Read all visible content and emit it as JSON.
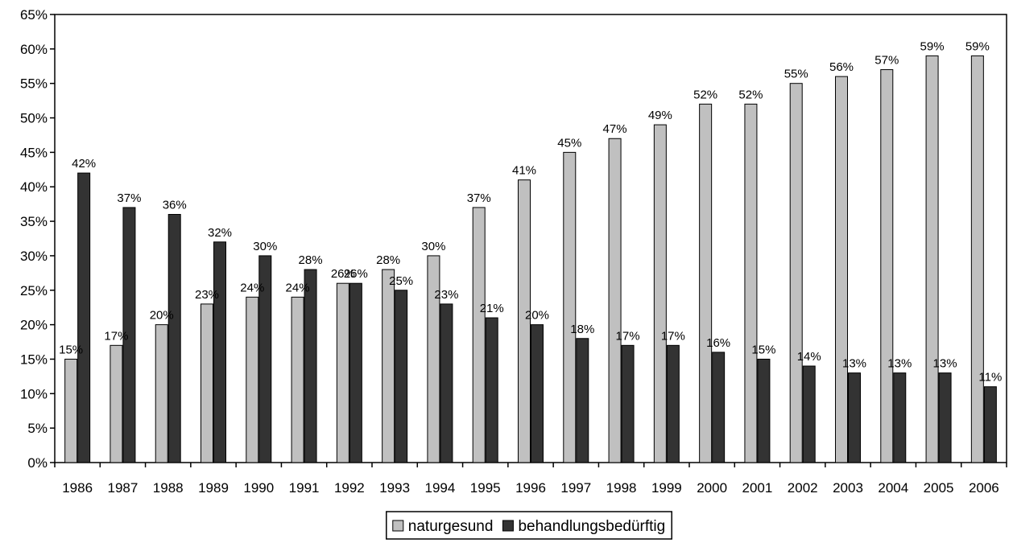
{
  "chart_data": {
    "type": "bar",
    "title": "",
    "xlabel": "",
    "ylabel": "",
    "ylim": [
      0,
      65
    ],
    "ytick_step": 5,
    "ytick_suffix": "%",
    "value_suffix": "%",
    "grid": false,
    "legend_position": "bottom-center",
    "categories": [
      "1986",
      "1987",
      "1988",
      "1989",
      "1990",
      "1991",
      "1992",
      "1993",
      "1994",
      "1995",
      "1996",
      "1997",
      "1998",
      "1999",
      "2000",
      "2001",
      "2002",
      "2003",
      "2004",
      "2005",
      "2006"
    ],
    "series": [
      {
        "name": "naturgesund",
        "color": "#c0c0c0",
        "values": [
          15,
          17,
          20,
          23,
          24,
          24,
          26,
          28,
          30,
          37,
          41,
          45,
          47,
          49,
          52,
          52,
          55,
          56,
          57,
          59,
          59
        ]
      },
      {
        "name": "behandlungsbedürftig",
        "color": "#333333",
        "values": [
          42,
          37,
          36,
          32,
          30,
          28,
          26,
          25,
          23,
          21,
          20,
          18,
          17,
          17,
          16,
          15,
          14,
          13,
          13,
          13,
          11
        ]
      }
    ]
  }
}
